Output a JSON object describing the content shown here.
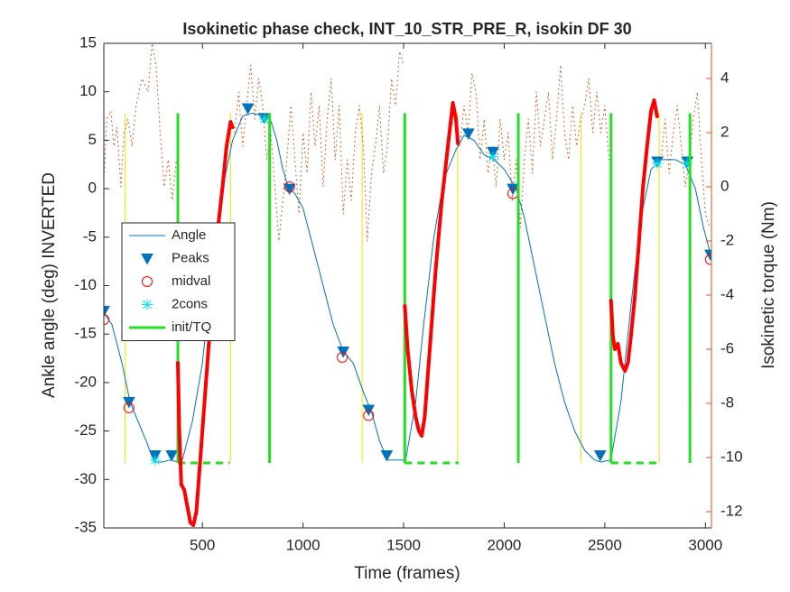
{
  "chart_data": {
    "type": "line",
    "title": "Isokinetic phase check, INT_10_STR_PRE_R, isokin DF 30",
    "xlabel": "Time (frames)",
    "ylabel": "Ankle angle (deg) INVERTED",
    "y2label": "Isokinetic torque (Nm)",
    "xlim": [
      10,
      3030
    ],
    "xticks": [
      500,
      1000,
      1500,
      2000,
      2500,
      3000
    ],
    "ylim": [
      -35,
      15
    ],
    "yticks": [
      -35,
      -30,
      -25,
      -20,
      -15,
      -10,
      -5,
      0,
      5,
      10,
      15
    ],
    "y2lim": [
      -12.6,
      5.3
    ],
    "y2ticks": [
      -12,
      -10,
      -8,
      -6,
      -4,
      -2,
      0,
      2,
      4
    ],
    "y2color": "#d95319",
    "series": [
      {
        "kind": "vlines",
        "color": "#f2e000",
        "width": 1,
        "x": [
          116,
          640,
          1294,
          1768,
          2382,
          2770
        ],
        "y0": -28.3,
        "y1": 7.8
      },
      {
        "kind": "line",
        "axis": "y2",
        "color": "#d95319",
        "dash": "1 4",
        "width": 1,
        "x": [
          10,
          25,
          45,
          60,
          75,
          95,
          110,
          130,
          150,
          170,
          200,
          230,
          250,
          270,
          290,
          310,
          330,
          350,
          370,
          500,
          660,
          680,
          700,
          720,
          740,
          760,
          780,
          800,
          820,
          840,
          860,
          880,
          900,
          920,
          940,
          960,
          980,
          1000,
          1020,
          1040,
          1060,
          1080,
          1100,
          1120,
          1140,
          1160,
          1180,
          1200,
          1220,
          1240,
          1260,
          1280,
          1300,
          1320,
          1340,
          1360,
          1380,
          1400,
          1420,
          1440,
          1460,
          1480,
          1500,
          1600,
          1780,
          1800,
          1820,
          1840,
          1860,
          1880,
          1900,
          1920,
          1940,
          1960,
          1980,
          2000,
          2020,
          2040,
          2060,
          2080,
          2100,
          2120,
          2140,
          2160,
          2180,
          2200,
          2220,
          2240,
          2260,
          2280,
          2300,
          2320,
          2340,
          2360,
          2380,
          2400,
          2420,
          2440,
          2460,
          2480,
          2500,
          2520,
          2600,
          2780,
          2800,
          2820,
          2840,
          2860,
          2880,
          2900,
          2920,
          2940,
          2960,
          2980,
          3000,
          3020
        ],
        "values": [
          0.2,
          2.5,
          2.8,
          1.5,
          2.2,
          0,
          2,
          2.5,
          1.5,
          3,
          4,
          3.5,
          5.3,
          4.5,
          2,
          0,
          1,
          -0.5,
          1,
          null,
          2,
          3.5,
          1.5,
          3,
          4.5,
          2.5,
          4,
          3,
          1,
          2,
          0,
          -2,
          -0.5,
          1,
          3,
          1,
          -1,
          2,
          0.5,
          3.5,
          1.5,
          3,
          0,
          2.5,
          4,
          1,
          3,
          -1,
          1,
          -0.5,
          2,
          3,
          1.5,
          -2,
          0.5,
          1.5,
          3,
          0.5,
          1.5,
          4,
          3,
          5,
          4.5,
          null,
          1.5,
          3,
          2,
          4.2,
          3.5,
          1,
          2.5,
          0.5,
          1.5,
          0,
          2.5,
          1,
          2,
          -0.5,
          1,
          -1.5,
          1,
          2.5,
          0.5,
          3.5,
          1.5,
          2.5,
          3.5,
          1,
          2.5,
          4.5,
          2,
          1,
          3,
          1.5,
          2.5,
          3,
          4,
          2,
          3.5,
          2,
          3,
          1,
          null,
          1,
          2.5,
          0.5,
          2,
          3,
          1.5,
          0,
          1,
          2.5,
          3.5,
          1,
          -1,
          -1.5
        ]
      },
      {
        "name": "Angle",
        "kind": "line",
        "color": "#0072bd",
        "width": 1,
        "x": [
          10,
          50,
          100,
          140,
          180,
          220,
          260,
          300,
          340,
          380,
          400,
          450,
          500,
          550,
          600,
          650,
          700,
          750,
          800,
          840,
          870,
          900,
          930,
          960,
          1000,
          1050,
          1100,
          1150,
          1200,
          1250,
          1300,
          1340,
          1380,
          1420,
          1480,
          1510,
          1560,
          1600,
          1650,
          1700,
          1760,
          1800,
          1850,
          1900,
          1950,
          2000,
          2060,
          2100,
          2150,
          2200,
          2250,
          2300,
          2350,
          2400,
          2450,
          2480,
          2530,
          2580,
          2630,
          2680,
          2730,
          2780,
          2850,
          2900,
          2950,
          2990,
          3025
        ],
        "values": [
          -12.8,
          -14,
          -18,
          -22,
          -24,
          -26,
          -28.2,
          -28.2,
          -28,
          -28.2,
          -28,
          -24,
          -18,
          -8,
          0,
          5,
          7.5,
          7.8,
          7.5,
          7,
          5,
          2,
          0,
          -0.5,
          -2,
          -6,
          -10,
          -14,
          -16.8,
          -18,
          -21,
          -23,
          -26,
          -28,
          -28,
          -28,
          -22,
          -14,
          -5,
          1,
          4,
          5.5,
          5,
          3.5,
          3,
          2,
          0,
          -3,
          -8,
          -13,
          -18,
          -22,
          -25,
          -27,
          -28,
          -28.2,
          -28,
          -22,
          -12,
          -3,
          2,
          3,
          3,
          2.5,
          0,
          -4,
          -6.7
        ]
      },
      {
        "name": "Peaks",
        "kind": "marker",
        "marker": "triangle",
        "color": "#0072bd",
        "x": [
          10,
          135,
          265,
          347,
          726,
          807,
          933,
          1200,
          1326,
          1416,
          1822,
          1944,
          2043,
          2477,
          2761,
          2910,
          3025
        ],
        "values": [
          -12.6,
          -22,
          -27.5,
          -27.5,
          8.3,
          7.3,
          0,
          -16.8,
          -22.8,
          -27.5,
          5.7,
          3.8,
          0,
          -27.5,
          2.8,
          2.8,
          -6.8
        ]
      },
      {
        "name": "midval",
        "kind": "marker",
        "marker": "circle",
        "color": "#ff0000",
        "x": [
          10,
          135,
          933,
          1195,
          1326,
          2043,
          3025
        ],
        "values": [
          -13.5,
          -22.6,
          0.2,
          -17.4,
          -23.4,
          -0.5,
          -7.3
        ]
      },
      {
        "name": "2cons",
        "kind": "marker",
        "marker": "star",
        "color": "#00e5ee",
        "x": [
          265,
          807,
          1944,
          2761,
          2910
        ],
        "values": [
          -28,
          7.2,
          3.3,
          2.6,
          2.6
        ]
      },
      {
        "name": "init/TQ",
        "kind": "vlines",
        "color": "#22e022",
        "width": 3,
        "x": [
          378,
          834,
          1506,
          2070,
          2531,
          2923
        ],
        "y0": -28.3,
        "y1": 7.8
      },
      {
        "kind": "hdash",
        "color": "#22e022",
        "width": 3,
        "x0": [
          378,
          1506,
          2531
        ],
        "x1": [
          635,
          1773,
          2765
        ],
        "value": -28.3
      },
      {
        "kind": "line",
        "axis": "y2",
        "color": "#ff0000",
        "width": 4,
        "x": [
          378,
          385,
          395,
          410,
          430,
          440,
          455,
          470,
          490,
          510,
          540,
          570,
          600,
          620,
          640,
          650,
          1000,
          1506,
          1520,
          1540,
          1560,
          1575,
          1590,
          1605,
          1630,
          1660,
          1690,
          1720,
          1745,
          1760,
          1770,
          2000,
          2531,
          2540,
          2550,
          2565,
          2580,
          2600,
          2615,
          2630,
          2650,
          2670,
          2690,
          2710,
          2730,
          2745,
          2760
        ],
        "values": [
          -6.5,
          -9,
          -11,
          -11.2,
          -12,
          -12.4,
          -12.5,
          -12,
          -10,
          -8,
          -5,
          -2,
          0,
          1.5,
          2.4,
          2.2,
          null,
          -4.4,
          -6,
          -7.5,
          -8.5,
          -9,
          -9.2,
          -8.5,
          -6,
          -3,
          -0.5,
          1.5,
          3.1,
          2.5,
          1.6,
          null,
          -4.2,
          -5.5,
          -6,
          -5.8,
          -6.5,
          -6.8,
          -6.5,
          -5.5,
          -4,
          -2,
          0,
          1.5,
          2.8,
          3.2,
          2.6
        ]
      }
    ]
  }
}
